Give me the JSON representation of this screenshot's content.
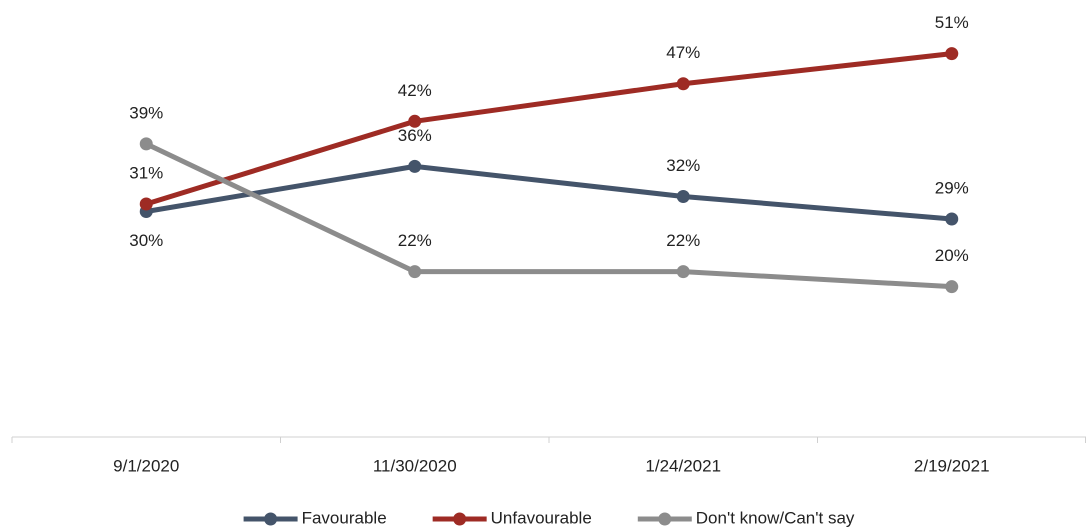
{
  "chart_data": {
    "type": "line",
    "categories": [
      "9/1/2020",
      "11/30/2020",
      "1/24/2021",
      "2/19/2021"
    ],
    "ylim": [
      0,
      60
    ],
    "series": [
      {
        "name": "Favourable",
        "color": "#44546a",
        "values": [
          30,
          36,
          32,
          29
        ],
        "value_labels": [
          "30%",
          "36%",
          "32%",
          "29%"
        ]
      },
      {
        "name": "Unfavourable",
        "color": "#9e2b24",
        "values": [
          31,
          42,
          47,
          51
        ],
        "value_labels": [
          "31%",
          "42%",
          "47%",
          "51%"
        ]
      },
      {
        "name": "Don't know/Can't say",
        "color": "#8c8c8c",
        "values": [
          39,
          22,
          22,
          20
        ],
        "value_labels": [
          "39%",
          "22%",
          "22%",
          "20%"
        ]
      }
    ],
    "legend": "bottom"
  }
}
